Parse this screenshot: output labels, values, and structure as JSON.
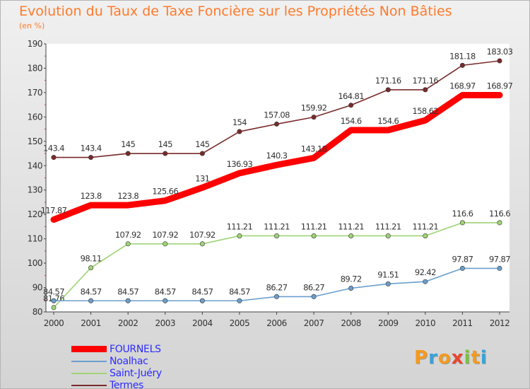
{
  "title": "Evolution du Taux de Taxe Foncière sur les Propriétés Non Bâties",
  "unit": "(en %)",
  "logo": {
    "letters": [
      "P",
      "r",
      "o",
      "x",
      "i",
      "t",
      "i"
    ],
    "colors": [
      "#f39a1e",
      "#3aa1d8",
      "#f39a1e",
      "#e8452c",
      "#7cc142",
      "#f39a1e",
      "#3aa1d8"
    ]
  },
  "chart_data": {
    "type": "line",
    "x": [
      "2000",
      "2001",
      "2002",
      "2003",
      "2004",
      "2005",
      "2006",
      "2007",
      "2008",
      "2009",
      "2010",
      "2011",
      "2012"
    ],
    "ylim": [
      80,
      190
    ],
    "yticks": [
      "80",
      "90",
      "100",
      "110",
      "120",
      "130",
      "140",
      "150",
      "160",
      "170",
      "180",
      "190"
    ],
    "grid": false,
    "legend_position": "bottom-left",
    "series": [
      {
        "name": "FOURNELS",
        "color": "#ff0000",
        "values": [
          117.87,
          123.8,
          123.8,
          125.66,
          131,
          136.93,
          140.3,
          143.18,
          154.6,
          154.6,
          158.62,
          168.97,
          168.97
        ],
        "labels": [
          "117.87",
          "123.8",
          "123.8",
          "125.66",
          "131",
          "136.93",
          "140.3",
          "143.18",
          "154.6",
          "154.6",
          "158.62",
          "168.97",
          "168.97"
        ]
      },
      {
        "name": "Noalhac",
        "color": "#6a9fce",
        "values": [
          84.57,
          84.57,
          84.57,
          84.57,
          84.57,
          84.57,
          86.27,
          86.27,
          89.72,
          91.51,
          92.42,
          97.87,
          97.87
        ],
        "labels": [
          "84.57",
          "84.57",
          "84.57",
          "84.57",
          "84.57",
          "84.57",
          "86.27",
          "86.27",
          "89.72",
          "91.51",
          "92.42",
          "97.87",
          "97.87"
        ]
      },
      {
        "name": "Saint-Juéry",
        "color": "#9fd476",
        "values": [
          81.76,
          98.11,
          107.92,
          107.92,
          107.92,
          111.21,
          111.21,
          111.21,
          111.21,
          111.21,
          111.21,
          116.6,
          116.6
        ],
        "labels": [
          "81.76",
          "98.11",
          "107.92",
          "107.92",
          "107.92",
          "111.21",
          "111.21",
          "111.21",
          "111.21",
          "111.21",
          "111.21",
          "116.6",
          "116.6"
        ]
      },
      {
        "name": "Termes",
        "color": "#7a2a2a",
        "values": [
          143.4,
          143.4,
          145,
          145,
          145,
          154,
          157.08,
          159.92,
          164.81,
          171.16,
          171.16,
          181.18,
          183.03
        ],
        "labels": [
          "143.4",
          "143.4",
          "145",
          "145",
          "145",
          "154",
          "157.08",
          "159.92",
          "164.81",
          "171.16",
          "171.16",
          "181.18",
          "183.03"
        ]
      }
    ]
  }
}
